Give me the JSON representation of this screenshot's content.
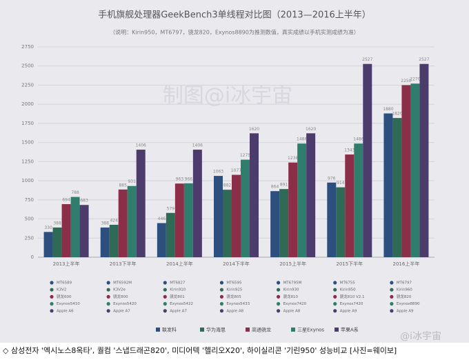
{
  "chart_data": {
    "type": "bar",
    "title": "手机旗舰处理器GeekBench3单线程对比图（2013—2016上半年）",
    "subtitle": "（说明：Kirin950，MT6797，骁龙820，Exynos8890为推测数值，真实成绩以手机实测成绩为准）",
    "watermark": "制图@i冰宇宙",
    "categories": [
      "2013上半年",
      "2013下半年",
      "2014上半年",
      "2014下半年",
      "2015上半年",
      "2015下半年",
      "2016上半年"
    ],
    "series": [
      {
        "name": "联发科",
        "color": "#2d4f7e",
        "values": [
          330,
          388,
          446,
          1063,
          864,
          976,
          1880
        ],
        "chips": [
          "MT6589",
          "MT6592M",
          "MT6827",
          "MT6595",
          "MT6795M",
          "MT6755",
          "MT6797"
        ]
      },
      {
        "name": "华为海思",
        "color": "#2e6a55",
        "values": [
          388,
          424,
          579,
          882,
          891,
          914,
          1820
        ],
        "chips": [
          "K3V2",
          "K3V2e",
          "Kirin910",
          "Kirin925",
          "Kirin930",
          "Kirin950",
          "Kirin960"
        ]
      },
      {
        "name": "高通骁龙",
        "color": "#8a2f47",
        "values": [
          694,
          885,
          963,
          1077,
          1238,
          1343,
          2250
        ],
        "chips": [
          "骁龙600",
          "骁龙800",
          "骁龙801",
          "骁龙805",
          "骁龙810",
          "骁龙810 V2.1",
          "骁龙820"
        ]
      },
      {
        "name": "三星Exynos",
        "color": "#2f7d6d",
        "values": [
          788,
          931,
          966,
          1275,
          1486,
          1486,
          2270
        ],
        "chips": [
          "Exynos5410",
          "Exynos5420",
          "Exynos5422",
          "Exynos5433",
          "Exynos7420",
          "Exynos7420",
          "Exynos8890"
        ]
      },
      {
        "name": "苹果A系",
        "color": "#4b3c6c",
        "values": [
          683,
          1406,
          1406,
          1620,
          1620,
          2527,
          2527
        ],
        "chips": [
          "Apple A6",
          "Apple A7",
          "Apple A7",
          "Apple A8",
          "Apple A8",
          "Apple A9",
          "Apple A9"
        ]
      }
    ],
    "ylim": [
      0,
      2750
    ],
    "yticks": [
      0,
      250,
      500,
      750,
      1000,
      1250,
      1500,
      1750,
      2000,
      2250,
      2500,
      2750
    ],
    "grid": true
  },
  "caption": "◇ 삼성전자 '엑시노스8옥타', 퀄컴 '스냅드래곤820', 미디어텍 '헬리오X20', 하이실리콘 '기린950' 성능비교 [사진=웨이보]",
  "credit": "@i冰宇宙"
}
